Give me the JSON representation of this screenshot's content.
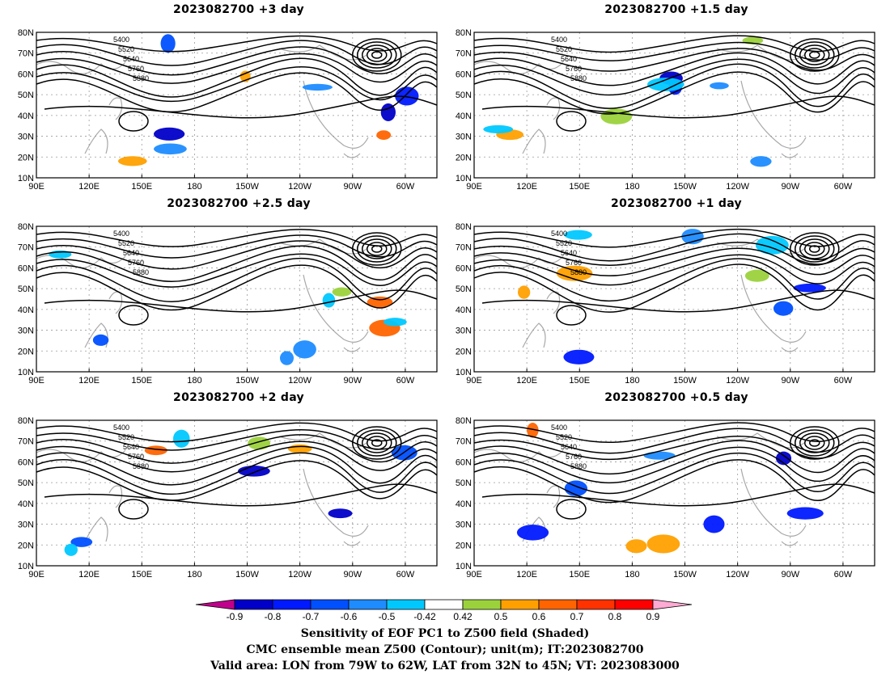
{
  "panels": [
    {
      "title": "2023082700 +3 day"
    },
    {
      "title": "2023082700 +1.5 day"
    },
    {
      "title": "2023082700 +2.5 day"
    },
    {
      "title": "2023082700 +1 day"
    },
    {
      "title": "2023082700 +2 day"
    },
    {
      "title": "2023082700 +0.5 day"
    }
  ],
  "axes": {
    "lat_labels": [
      "80N",
      "70N",
      "60N",
      "50N",
      "40N",
      "30N",
      "20N",
      "10N"
    ],
    "lon_labels": [
      "90E",
      "120E",
      "150E",
      "180",
      "150W",
      "120W",
      "90W",
      "60W"
    ]
  },
  "contour_labels": [
    "5400",
    "5520",
    "5640",
    "5760",
    "5880"
  ],
  "colorbar": {
    "ticks": [
      "-0.9",
      "-0.8",
      "-0.7",
      "-0.6",
      "-0.5",
      "-0.42",
      "0.42",
      "0.5",
      "0.6",
      "0.7",
      "0.8",
      "0.9"
    ],
    "colors": [
      "#c0008c",
      "#0000c8",
      "#0019ff",
      "#0050ff",
      "#1e8cff",
      "#00c8ff",
      "#ffffff",
      "#9bd23c",
      "#ffa000",
      "#ff6400",
      "#ff3200",
      "#ff0000",
      "#ffaad2"
    ]
  },
  "captions": {
    "line1": "Sensitivity of EOF PC1 to Z500 field (Shaded)",
    "line2": "CMC ensemble mean Z500 (Contour); unit(m); IT:2023082700",
    "line3": "Valid area: LON from 79W to 62W, LAT from 32N to 45N; VT: 2023083000"
  }
}
